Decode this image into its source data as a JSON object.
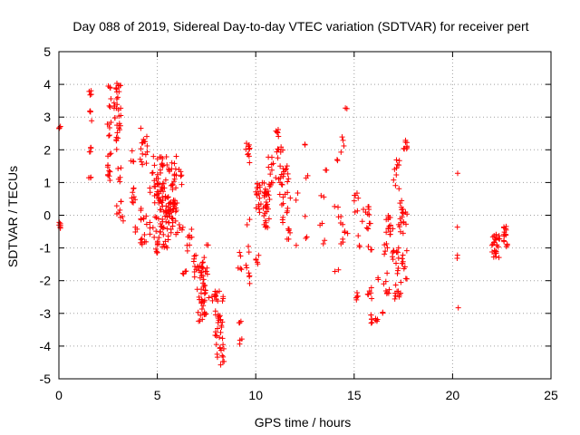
{
  "chart_data": {
    "type": "scatter",
    "title": "Day 088 of 2019, Sidereal Day-to-day VTEC variation (SDTVAR) for receiver pert",
    "xlabel": "GPS time / hours",
    "ylabel": "SDTVAR / TECUs",
    "xlim": [
      0,
      25
    ],
    "ylim": [
      -5,
      5
    ],
    "xticks": [
      0,
      5,
      10,
      15,
      20,
      25
    ],
    "yticks": [
      -5,
      -4,
      -3,
      -2,
      -1,
      0,
      1,
      2,
      3,
      4,
      5
    ],
    "grid": true,
    "marker": "plus",
    "color": "#ff0000",
    "series": [
      {
        "name": "SDTVAR",
        "x": [],
        "y": []
      }
    ],
    "clusters": [
      {
        "x": [
          0.0,
          0.1
        ],
        "y": [
          2.62,
          2.72
        ],
        "n": 4
      },
      {
        "x": [
          0.0,
          0.1
        ],
        "y": [
          -0.4,
          -0.2
        ],
        "n": 6
      },
      {
        "x": [
          1.5,
          1.65
        ],
        "y": [
          3.6,
          3.85
        ],
        "n": 4
      },
      {
        "x": [
          1.5,
          1.65
        ],
        "y": [
          3.1,
          3.3
        ],
        "n": 3
      },
      {
        "x": [
          1.6,
          1.7
        ],
        "y": [
          2.8,
          2.9
        ],
        "n": 1
      },
      {
        "x": [
          1.5,
          1.65
        ],
        "y": [
          1.8,
          2.1
        ],
        "n": 5
      },
      {
        "x": [
          1.5,
          1.65
        ],
        "y": [
          1.05,
          1.25
        ],
        "n": 3
      },
      {
        "x": [
          2.5,
          2.65
        ],
        "y": [
          3.3,
          4.0
        ],
        "n": 6
      },
      {
        "x": [
          2.45,
          2.7
        ],
        "y": [
          2.4,
          3.0
        ],
        "n": 6
      },
      {
        "x": [
          2.45,
          2.7
        ],
        "y": [
          0.9,
          2.0
        ],
        "n": 12
      },
      {
        "x": [
          2.8,
          3.2
        ],
        "y": [
          2.5,
          4.1
        ],
        "n": 28
      },
      {
        "x": [
          2.9,
          3.2
        ],
        "y": [
          1.0,
          2.4
        ],
        "n": 10
      },
      {
        "x": [
          2.9,
          3.2
        ],
        "y": [
          0.0,
          0.5
        ],
        "n": 6
      },
      {
        "x": [
          3.1,
          3.3
        ],
        "y": [
          -0.3,
          0.0
        ],
        "n": 3
      },
      {
        "x": [
          3.6,
          3.8
        ],
        "y": [
          1.6,
          2.0
        ],
        "n": 4
      },
      {
        "x": [
          3.7,
          3.9
        ],
        "y": [
          0.3,
          1.0
        ],
        "n": 8
      },
      {
        "x": [
          3.8,
          4.0
        ],
        "y": [
          -0.6,
          -0.3
        ],
        "n": 3
      },
      {
        "x": [
          4.1,
          4.5
        ],
        "y": [
          1.4,
          2.7
        ],
        "n": 16
      },
      {
        "x": [
          4.1,
          4.5
        ],
        "y": [
          -0.3,
          0.4
        ],
        "n": 8
      },
      {
        "x": [
          4.1,
          4.5
        ],
        "y": [
          -0.95,
          -0.55
        ],
        "n": 8
      },
      {
        "x": [
          4.6,
          5.0
        ],
        "y": [
          0.6,
          1.6
        ],
        "n": 10
      },
      {
        "x": [
          4.6,
          5.0
        ],
        "y": [
          -0.8,
          0.0
        ],
        "n": 8
      },
      {
        "x": [
          4.9,
          5.2
        ],
        "y": [
          -1.3,
          -0.8
        ],
        "n": 5
      },
      {
        "x": [
          4.8,
          5.3
        ],
        "y": [
          0.1,
          1.8
        ],
        "n": 25
      },
      {
        "x": [
          5.0,
          5.6
        ],
        "y": [
          -1.0,
          0.6
        ],
        "n": 45
      },
      {
        "x": [
          5.2,
          6.0
        ],
        "y": [
          0.8,
          1.8
        ],
        "n": 30
      },
      {
        "x": [
          5.5,
          6.0
        ],
        "y": [
          -0.6,
          0.4
        ],
        "n": 30
      },
      {
        "x": [
          5.7,
          6.0
        ],
        "y": [
          0.1,
          0.8
        ],
        "n": 10
      },
      {
        "x": [
          6.1,
          6.3
        ],
        "y": [
          0.9,
          1.5
        ],
        "n": 5
      },
      {
        "x": [
          6.0,
          6.3
        ],
        "y": [
          -0.6,
          -0.2
        ],
        "n": 5
      },
      {
        "x": [
          6.2,
          6.5
        ],
        "y": [
          -1.9,
          -1.6
        ],
        "n": 4
      },
      {
        "x": [
          6.5,
          6.8
        ],
        "y": [
          -1.1,
          -0.4
        ],
        "n": 8
      },
      {
        "x": [
          6.8,
          7.4
        ],
        "y": [
          -2.2,
          -1.2
        ],
        "n": 22
      },
      {
        "x": [
          7.0,
          7.5
        ],
        "y": [
          -3.4,
          -2.2
        ],
        "n": 25
      },
      {
        "x": [
          7.3,
          7.6
        ],
        "y": [
          -2.3,
          -1.3
        ],
        "n": 12
      },
      {
        "x": [
          7.5,
          7.6
        ],
        "y": [
          -1.1,
          -0.8
        ],
        "n": 2
      },
      {
        "x": [
          7.6,
          8.0
        ],
        "y": [
          -2.9,
          -2.3
        ],
        "n": 4
      },
      {
        "x": [
          7.9,
          8.4
        ],
        "y": [
          -4.6,
          -2.3
        ],
        "n": 45
      },
      {
        "x": [
          9.1,
          9.3
        ],
        "y": [
          -1.3,
          -1.1
        ],
        "n": 2
      },
      {
        "x": [
          9.1,
          9.3
        ],
        "y": [
          -1.9,
          -1.6
        ],
        "n": 3
      },
      {
        "x": [
          9.1,
          9.3
        ],
        "y": [
          -3.3,
          -3.0
        ],
        "n": 3
      },
      {
        "x": [
          9.1,
          9.3
        ],
        "y": [
          -4.0,
          -3.7
        ],
        "n": 3
      },
      {
        "x": [
          9.5,
          9.7
        ],
        "y": [
          1.6,
          2.3
        ],
        "n": 10
      },
      {
        "x": [
          9.5,
          9.7
        ],
        "y": [
          -0.3,
          -0.1
        ],
        "n": 2
      },
      {
        "x": [
          9.5,
          9.7
        ],
        "y": [
          -2.4,
          -0.8
        ],
        "n": 8
      },
      {
        "x": [
          10.0,
          10.3
        ],
        "y": [
          -1.5,
          -1.2
        ],
        "n": 5
      },
      {
        "x": [
          10.0,
          10.6
        ],
        "y": [
          0.0,
          1.0
        ],
        "n": 30
      },
      {
        "x": [
          10.4,
          10.8
        ],
        "y": [
          -0.4,
          0.8
        ],
        "n": 20
      },
      {
        "x": [
          10.6,
          10.9
        ],
        "y": [
          0.8,
          1.9
        ],
        "n": 12
      },
      {
        "x": [
          11.0,
          11.2
        ],
        "y": [
          2.4,
          2.75
        ],
        "n": 6
      },
      {
        "x": [
          11.0,
          11.4
        ],
        "y": [
          0.5,
          2.1
        ],
        "n": 16
      },
      {
        "x": [
          11.3,
          11.7
        ],
        "y": [
          -0.3,
          1.6
        ],
        "n": 20
      },
      {
        "x": [
          11.5,
          11.8
        ],
        "y": [
          -0.8,
          -0.2
        ],
        "n": 6
      },
      {
        "x": [
          11.6,
          11.8
        ],
        "y": [
          0.4,
          0.7
        ],
        "n": 2
      },
      {
        "x": [
          11.9,
          12.1
        ],
        "y": [
          -1.0,
          -0.9
        ],
        "n": 1
      },
      {
        "x": [
          12.0,
          12.2
        ],
        "y": [
          0.4,
          0.7
        ],
        "n": 2
      },
      {
        "x": [
          12.5,
          12.6
        ],
        "y": [
          -0.8,
          -0.6
        ],
        "n": 2
      },
      {
        "x": [
          12.4,
          12.6
        ],
        "y": [
          2.1,
          2.2
        ],
        "n": 2
      },
      {
        "x": [
          12.5,
          12.7
        ],
        "y": [
          1.1,
          1.25
        ],
        "n": 2
      },
      {
        "x": [
          12.5,
          12.7
        ],
        "y": [
          -0.05,
          0.05
        ],
        "n": 1
      },
      {
        "x": [
          13.2,
          13.4
        ],
        "y": [
          -0.3,
          -0.2
        ],
        "n": 2
      },
      {
        "x": [
          13.3,
          13.5
        ],
        "y": [
          0.5,
          0.6
        ],
        "n": 2
      },
      {
        "x": [
          13.4,
          13.6
        ],
        "y": [
          1.3,
          1.4
        ],
        "n": 2
      },
      {
        "x": [
          13.3,
          13.5
        ],
        "y": [
          -0.9,
          -0.7
        ],
        "n": 2
      },
      {
        "x": [
          14.0,
          14.2
        ],
        "y": [
          1.6,
          1.8
        ],
        "n": 2
      },
      {
        "x": [
          14.0,
          14.2
        ],
        "y": [
          0.2,
          0.3
        ],
        "n": 2
      },
      {
        "x": [
          14.0,
          14.2
        ],
        "y": [
          -1.75,
          -1.55
        ],
        "n": 2
      },
      {
        "x": [
          14.2,
          14.5
        ],
        "y": [
          1.9,
          2.4
        ],
        "n": 4
      },
      {
        "x": [
          14.2,
          14.5
        ],
        "y": [
          -0.3,
          0.0
        ],
        "n": 4
      },
      {
        "x": [
          14.3,
          14.5
        ],
        "y": [
          -0.9,
          -0.6
        ],
        "n": 3
      },
      {
        "x": [
          14.5,
          14.7
        ],
        "y": [
          3.25,
          3.35
        ],
        "n": 2
      },
      {
        "x": [
          14.5,
          14.7
        ],
        "y": [
          -0.6,
          -0.2
        ],
        "n": 3
      },
      {
        "x": [
          15.0,
          15.3
        ],
        "y": [
          0.4,
          0.7
        ],
        "n": 5
      },
      {
        "x": [
          15.0,
          15.2
        ],
        "y": [
          0.0,
          0.2
        ],
        "n": 2
      },
      {
        "x": [
          15.1,
          15.3
        ],
        "y": [
          -2.6,
          -2.3
        ],
        "n": 5
      },
      {
        "x": [
          15.1,
          15.3
        ],
        "y": [
          -1.0,
          -0.6
        ],
        "n": 3
      },
      {
        "x": [
          15.4,
          15.6
        ],
        "y": [
          -0.3,
          0.2
        ],
        "n": 3
      },
      {
        "x": [
          15.6,
          15.9
        ],
        "y": [
          0.0,
          0.4
        ],
        "n": 5
      },
      {
        "x": [
          15.6,
          15.9
        ],
        "y": [
          -0.6,
          -0.2
        ],
        "n": 5
      },
      {
        "x": [
          15.6,
          15.9
        ],
        "y": [
          -1.2,
          -0.9
        ],
        "n": 3
      },
      {
        "x": [
          15.6,
          15.9
        ],
        "y": [
          -2.6,
          -2.2
        ],
        "n": 6
      },
      {
        "x": [
          15.8,
          16.2
        ],
        "y": [
          -3.3,
          -3.0
        ],
        "n": 10
      },
      {
        "x": [
          16.0,
          16.3
        ],
        "y": [
          -2.1,
          -1.9
        ],
        "n": 2
      },
      {
        "x": [
          16.3,
          16.5
        ],
        "y": [
          -3.0,
          -2.9
        ],
        "n": 2
      },
      {
        "x": [
          16.4,
          16.7
        ],
        "y": [
          -1.2,
          -0.8
        ],
        "n": 5
      },
      {
        "x": [
          16.5,
          16.8
        ],
        "y": [
          -2.4,
          -1.6
        ],
        "n": 8
      },
      {
        "x": [
          16.6,
          17.0
        ],
        "y": [
          -0.6,
          0.0
        ],
        "n": 14
      },
      {
        "x": [
          16.9,
          17.3
        ],
        "y": [
          -1.8,
          -1.0
        ],
        "n": 14
      },
      {
        "x": [
          17.0,
          17.4
        ],
        "y": [
          -2.7,
          -1.8
        ],
        "n": 10
      },
      {
        "x": [
          17.0,
          17.3
        ],
        "y": [
          0.8,
          1.7
        ],
        "n": 10
      },
      {
        "x": [
          17.2,
          17.5
        ],
        "y": [
          -0.7,
          0.5
        ],
        "n": 14
      },
      {
        "x": [
          17.4,
          17.7
        ],
        "y": [
          -2.0,
          -1.0
        ],
        "n": 10
      },
      {
        "x": [
          17.4,
          17.7
        ],
        "y": [
          -0.5,
          0.2
        ],
        "n": 6
      },
      {
        "x": [
          17.5,
          17.7
        ],
        "y": [
          2.0,
          2.3
        ],
        "n": 8
      },
      {
        "x": [
          20.1,
          20.3
        ],
        "y": [
          1.25,
          1.35
        ],
        "n": 1
      },
      {
        "x": [
          20.1,
          20.3
        ],
        "y": [
          -0.4,
          -0.3
        ],
        "n": 1
      },
      {
        "x": [
          20.1,
          20.3
        ],
        "y": [
          -1.4,
          -1.1
        ],
        "n": 2
      },
      {
        "x": [
          20.1,
          20.3
        ],
        "y": [
          -2.85,
          -2.75
        ],
        "n": 1
      },
      {
        "x": [
          22.0,
          22.4
        ],
        "y": [
          -1.3,
          -0.5
        ],
        "n": 25
      },
      {
        "x": [
          22.6,
          22.8
        ],
        "y": [
          -1.0,
          -0.3
        ],
        "n": 15
      }
    ]
  }
}
